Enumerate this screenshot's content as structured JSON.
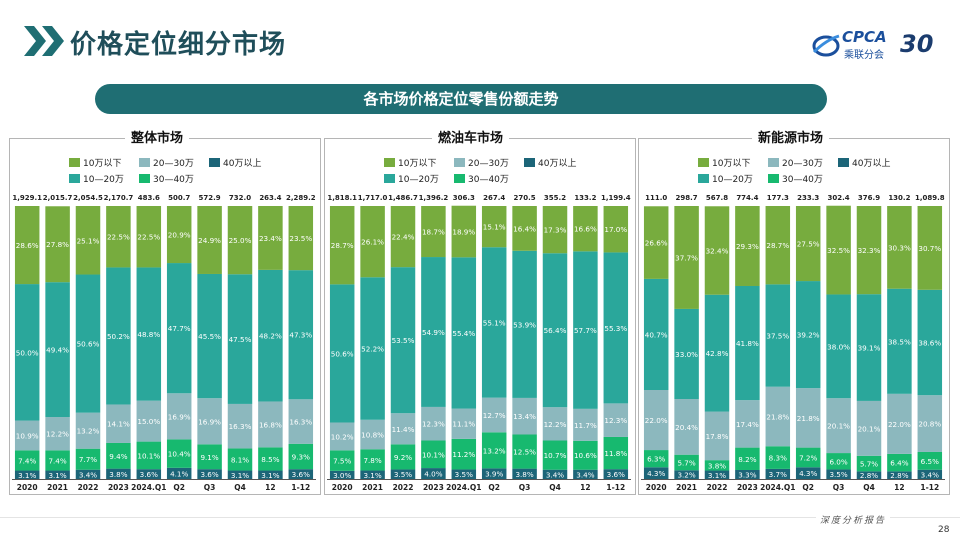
{
  "header": {
    "title": "价格定位细分市场"
  },
  "logo": {
    "brand": "CPCA",
    "cn": "乘联分会",
    "anniv": "30"
  },
  "banner": {
    "text": "各市场价格定位零售份额走势"
  },
  "footer": {
    "text": "深度分析报告",
    "page": "28"
  },
  "colors": {
    "lt10": "#77ac3e",
    "10to20": "#2aa79b",
    "20to30": "#8cb8be",
    "30to40": "#17b96f",
    "gt40": "#1c6578"
  },
  "chart_data": [
    {
      "type": "bar",
      "stacked": "percent",
      "title": "整体市场",
      "categories": [
        "2020",
        "2021",
        "2022",
        "2023",
        "2024.Q1",
        "Q2",
        "Q3",
        "Q4",
        "12",
        "1-12"
      ],
      "totals": [
        "1,929.1",
        "2,015.7",
        "2,054.5",
        "2,170.7",
        "483.6",
        "500.7",
        "572.9",
        "732.0",
        "263.4",
        "2,289.2"
      ],
      "series": [
        {
          "name": "40万以上",
          "key": "gt40",
          "values": [
            3.1,
            3.1,
            3.4,
            3.8,
            3.6,
            4.1,
            3.6,
            3.1,
            3.1,
            3.6
          ]
        },
        {
          "name": "30—40万",
          "key": "30to40",
          "values": [
            7.4,
            7.4,
            7.7,
            9.4,
            10.1,
            10.4,
            9.1,
            8.1,
            8.5,
            9.3
          ]
        },
        {
          "name": "20—30万",
          "key": "20to30",
          "values": [
            10.9,
            12.2,
            13.2,
            14.1,
            15.0,
            16.9,
            16.9,
            16.3,
            16.8,
            16.3
          ]
        },
        {
          "name": "10—20万",
          "key": "10to20",
          "values": [
            50.0,
            49.4,
            50.6,
            50.2,
            48.8,
            47.7,
            45.5,
            47.5,
            48.2,
            47.3
          ]
        },
        {
          "name": "10万以下",
          "key": "lt10",
          "values": [
            28.6,
            27.8,
            25.1,
            22.5,
            22.5,
            20.9,
            24.9,
            25.0,
            23.4,
            23.5
          ]
        }
      ]
    },
    {
      "type": "bar",
      "stacked": "percent",
      "title": "燃油车市场",
      "categories": [
        "2020",
        "2021",
        "2022",
        "2023",
        "2024.Q1",
        "Q2",
        "Q3",
        "Q4",
        "12",
        "1-12"
      ],
      "totals": [
        "1,818.1",
        "1,717.0",
        "1,486.7",
        "1,396.2",
        "306.3",
        "267.4",
        "270.5",
        "355.2",
        "133.2",
        "1,199.4"
      ],
      "series": [
        {
          "name": "40万以上",
          "key": "gt40",
          "values": [
            3.0,
            3.1,
            3.5,
            4.0,
            3.5,
            3.9,
            3.8,
            3.4,
            3.4,
            3.6
          ]
        },
        {
          "name": "30—40万",
          "key": "30to40",
          "values": [
            7.5,
            7.8,
            9.2,
            10.1,
            11.2,
            13.2,
            12.5,
            10.7,
            10.6,
            11.8
          ]
        },
        {
          "name": "20—30万",
          "key": "20to30",
          "values": [
            10.2,
            10.8,
            11.4,
            12.3,
            11.1,
            12.7,
            13.4,
            12.2,
            11.7,
            12.3
          ]
        },
        {
          "name": "10—20万",
          "key": "10to20",
          "values": [
            50.6,
            52.2,
            53.5,
            54.9,
            55.4,
            55.1,
            53.9,
            56.4,
            57.7,
            55.3
          ]
        },
        {
          "name": "10万以下",
          "key": "lt10",
          "values": [
            28.7,
            26.1,
            22.4,
            18.7,
            18.9,
            15.1,
            16.4,
            17.3,
            16.6,
            17.0
          ]
        }
      ]
    },
    {
      "type": "bar",
      "stacked": "percent",
      "title": "新能源市场",
      "categories": [
        "2020",
        "2021",
        "2022",
        "2023",
        "2024.Q1",
        "Q2",
        "Q3",
        "Q4",
        "12",
        "1-12"
      ],
      "totals": [
        "111.0",
        "298.7",
        "567.8",
        "774.4",
        "177.3",
        "233.3",
        "302.4",
        "376.9",
        "130.2",
        "1,089.8"
      ],
      "series": [
        {
          "name": "40万以上",
          "key": "gt40",
          "values": [
            4.3,
            3.2,
            3.1,
            3.3,
            3.7,
            4.3,
            3.5,
            2.8,
            2.8,
            3.4
          ]
        },
        {
          "name": "30—40万",
          "key": "30to40",
          "values": [
            6.3,
            5.7,
            3.8,
            8.2,
            8.3,
            7.2,
            6.0,
            5.7,
            6.4,
            6.5
          ]
        },
        {
          "name": "20—30万",
          "key": "20to30",
          "values": [
            22.0,
            20.4,
            17.8,
            17.4,
            21.8,
            21.8,
            20.1,
            20.1,
            22.0,
            20.8
          ]
        },
        {
          "name": "10—20万",
          "key": "10to20",
          "values": [
            40.7,
            33.0,
            42.8,
            41.8,
            37.5,
            39.2,
            38.0,
            39.1,
            38.5,
            38.6
          ]
        },
        {
          "name": "10万以下",
          "key": "lt10",
          "values": [
            26.6,
            37.7,
            32.4,
            29.3,
            28.7,
            27.5,
            32.5,
            32.3,
            30.3,
            30.7
          ]
        }
      ]
    }
  ]
}
